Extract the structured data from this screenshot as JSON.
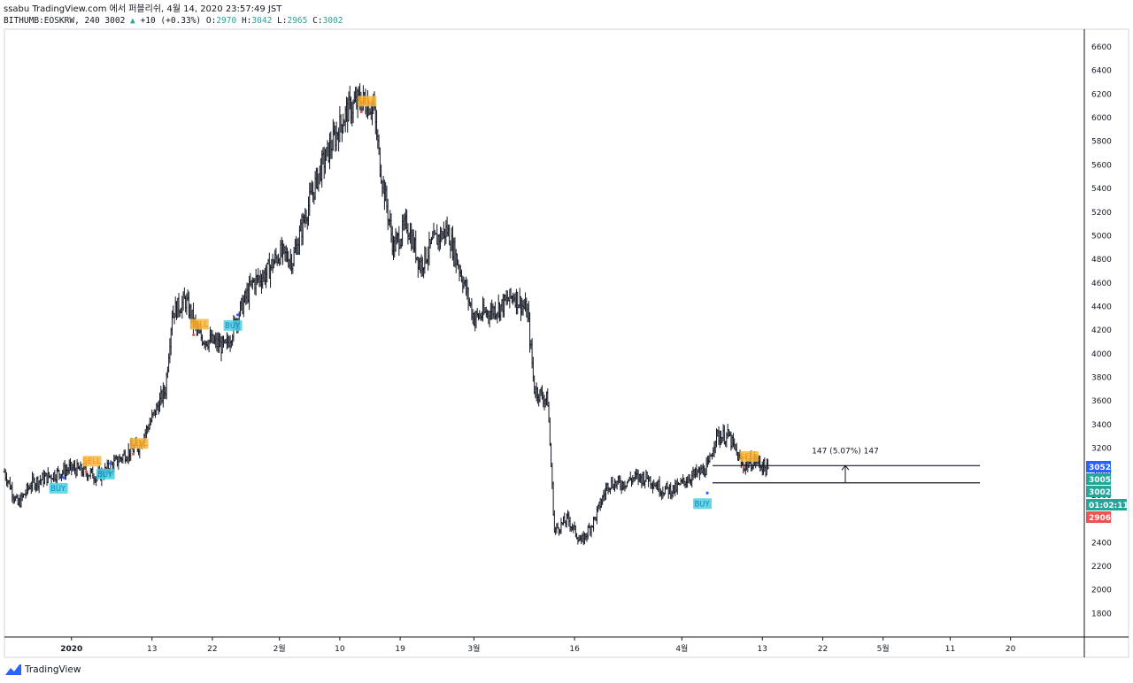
{
  "header": {
    "publisher": "ssabu TradingView.com 에서 퍼블리쉬, 4월 14, 2020 23:57:49 JST",
    "symbol": "BITHUMB:EOSKRW, 240",
    "last": "3002",
    "change": "+10 (+0.33%)",
    "o_label": "O:",
    "o_value": "2970",
    "h_label": "H:",
    "h_value": "3042",
    "l_label": "L:",
    "l_value": "2965",
    "c_label": "C:",
    "c_value": "3002"
  },
  "footer": {
    "brand": "TradingView"
  },
  "colors": {
    "sell": "#f5b942",
    "buy": "#4dd0e1",
    "up": "#26a69a",
    "down": "#ef5350",
    "blue": "#2962ff"
  },
  "chart_data": {
    "type": "ohlc",
    "symbol": "BITHUMB:EOSKRW",
    "interval": "240",
    "ylim": [
      1600,
      6750
    ],
    "yticks": [
      1800,
      2000,
      2200,
      2400,
      2600,
      2800,
      3000,
      3200,
      3400,
      3600,
      3800,
      4000,
      4200,
      4400,
      4600,
      4800,
      5000,
      5200,
      5400,
      5600,
      5800,
      6000,
      6200,
      6400,
      6600
    ],
    "xlim": [
      "2019-12-22",
      "2020-05-31"
    ],
    "xticks": [
      {
        "date": "2020-01-01",
        "label": "2020",
        "bold": true
      },
      {
        "date": "2020-01-13",
        "label": "13"
      },
      {
        "date": "2020-01-22",
        "label": "22"
      },
      {
        "date": "2020-02-01",
        "label": "2월"
      },
      {
        "date": "2020-02-10",
        "label": "10"
      },
      {
        "date": "2020-02-19",
        "label": "19"
      },
      {
        "date": "2020-03-01",
        "label": "3월"
      },
      {
        "date": "2020-03-16",
        "label": "16"
      },
      {
        "date": "2020-04-01",
        "label": "4월"
      },
      {
        "date": "2020-04-13",
        "label": "13"
      },
      {
        "date": "2020-04-22",
        "label": "22"
      },
      {
        "date": "2020-05-01",
        "label": "5월"
      },
      {
        "date": "2020-05-11",
        "label": "11"
      },
      {
        "date": "2020-05-20",
        "label": "20"
      }
    ],
    "close_path": [
      [
        "2019-12-22",
        3000
      ],
      [
        "2019-12-24",
        2720
      ],
      [
        "2019-12-26",
        2900
      ],
      [
        "2019-12-29",
        2970
      ],
      [
        "2020-01-01",
        3030
      ],
      [
        "2020-01-03",
        3000
      ],
      [
        "2020-01-05",
        2960
      ],
      [
        "2020-01-07",
        3050
      ],
      [
        "2020-01-09",
        3150
      ],
      [
        "2020-01-11",
        3220
      ],
      [
        "2020-01-13",
        3450
      ],
      [
        "2020-01-15",
        3700
      ],
      [
        "2020-01-16",
        4350
      ],
      [
        "2020-01-18",
        4450
      ],
      [
        "2020-01-20",
        4150
      ],
      [
        "2020-01-22",
        4100
      ],
      [
        "2020-01-24",
        4050
      ],
      [
        "2020-01-26",
        4350
      ],
      [
        "2020-01-28",
        4600
      ],
      [
        "2020-01-30",
        4680
      ],
      [
        "2020-02-01",
        4850
      ],
      [
        "2020-02-03",
        4800
      ],
      [
        "2020-02-05",
        5200
      ],
      [
        "2020-02-07",
        5550
      ],
      [
        "2020-02-09",
        5800
      ],
      [
        "2020-02-11",
        6050
      ],
      [
        "2020-02-13",
        6150
      ],
      [
        "2020-02-15",
        6100
      ],
      [
        "2020-02-16",
        5600
      ],
      [
        "2020-02-18",
        4900
      ],
      [
        "2020-02-20",
        5100
      ],
      [
        "2020-02-22",
        4750
      ],
      [
        "2020-02-24",
        4950
      ],
      [
        "2020-02-26",
        5050
      ],
      [
        "2020-02-28",
        4700
      ],
      [
        "2020-03-01",
        4300
      ],
      [
        "2020-03-03",
        4350
      ],
      [
        "2020-03-05",
        4400
      ],
      [
        "2020-03-07",
        4500
      ],
      [
        "2020-03-09",
        4350
      ],
      [
        "2020-03-10",
        3700
      ],
      [
        "2020-03-12",
        3600
      ],
      [
        "2020-03-13",
        2500
      ],
      [
        "2020-03-15",
        2600
      ],
      [
        "2020-03-17",
        2400
      ],
      [
        "2020-03-19",
        2600
      ],
      [
        "2020-03-21",
        2900
      ],
      [
        "2020-03-23",
        2900
      ],
      [
        "2020-03-25",
        2950
      ],
      [
        "2020-03-27",
        2950
      ],
      [
        "2020-03-29",
        2850
      ],
      [
        "2020-03-31",
        2850
      ],
      [
        "2020-04-02",
        2950
      ],
      [
        "2020-04-04",
        3000
      ],
      [
        "2020-04-05",
        3050
      ],
      [
        "2020-04-06",
        3300
      ],
      [
        "2020-04-08",
        3300
      ],
      [
        "2020-04-10",
        3050
      ],
      [
        "2020-04-12",
        3100
      ],
      [
        "2020-04-14",
        3002
      ]
    ],
    "markers": [
      {
        "type": "BUY",
        "date": "2019-12-30",
        "price": 2860
      },
      {
        "type": "SELL",
        "date": "2020-01-04",
        "price": 3090
      },
      {
        "type": "BUY",
        "date": "2020-01-06",
        "price": 2980
      },
      {
        "type": "SELL",
        "date": "2020-01-11",
        "price": 3240
      },
      {
        "type": "SELL",
        "date": "2020-01-20",
        "price": 4250
      },
      {
        "type": "BUY",
        "date": "2020-01-25",
        "price": 4240
      },
      {
        "type": "SELL",
        "date": "2020-02-14",
        "price": 6140
      },
      {
        "type": "BUY",
        "date": "2020-04-04",
        "price": 2730
      },
      {
        "type": "SELL",
        "date": "2020-04-11",
        "price": 3130
      }
    ],
    "hlines": [
      3052,
      2906
    ],
    "measure": {
      "label": "147 (5.07%) 147",
      "from": 2906,
      "to": 3052
    },
    "price_badges": [
      {
        "value": "3052",
        "color": "#2962ff"
      },
      {
        "value": "3005",
        "color": "#26a69a"
      },
      {
        "value": "3002",
        "color": "#26a69a"
      },
      {
        "value": "01:02:11",
        "color": "#26a69a"
      },
      {
        "value": "2906",
        "color": "#ef5350"
      }
    ]
  }
}
